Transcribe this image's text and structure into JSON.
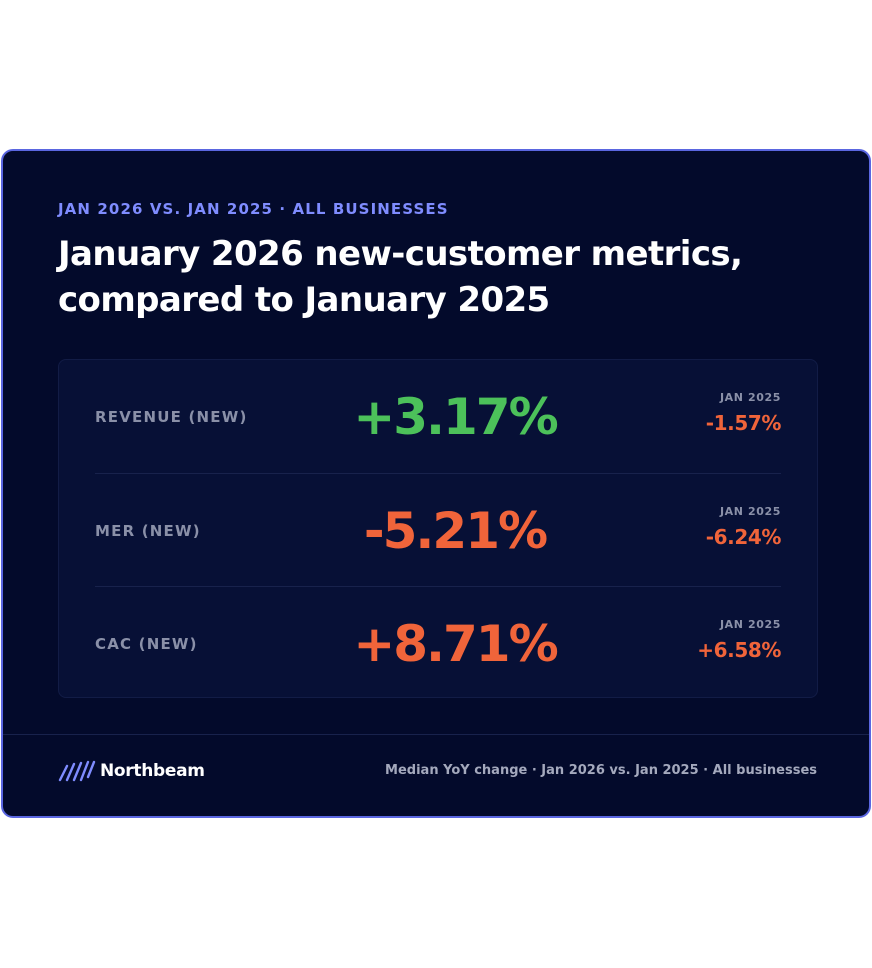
{
  "colors": {
    "background": "#030a2b",
    "border": "#5a66e0",
    "accent": "#7f8cff",
    "positive": "#4cc15a",
    "negative": "#f0643a",
    "muted": "#8a90a8"
  },
  "header": {
    "eyebrow": "JAN 2026 VS. JAN 2025 · ALL BUSINESSES",
    "title": "January 2026 new-customer metrics, compared to January 2025"
  },
  "metrics": [
    {
      "label": "REVENUE (NEW)",
      "value": "+3.17%",
      "status": "positive",
      "compare_label": "JAN 2025",
      "compare_value": "-1.57%"
    },
    {
      "label": "MER (NEW)",
      "value": "-5.21%",
      "status": "negative",
      "compare_label": "JAN 2025",
      "compare_value": "-6.24%"
    },
    {
      "label": "CAC (NEW)",
      "value": "+8.71%",
      "status": "negative",
      "compare_label": "JAN 2025",
      "compare_value": "+6.58%"
    }
  ],
  "footer": {
    "brand_icon": "northbeam-logo-icon",
    "brand": "Northbeam",
    "note": "Median YoY change · Jan 2026 vs. Jan 2025 · All businesses"
  }
}
